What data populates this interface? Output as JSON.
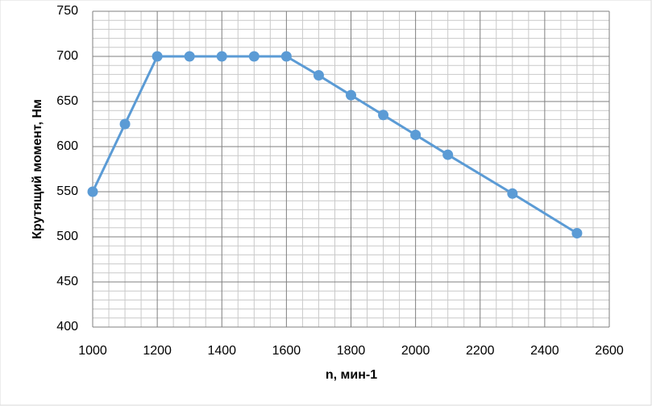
{
  "chart_data": {
    "type": "line",
    "x_label": "n, мин-1",
    "y_label": "Крутящий момент, Нм",
    "x": [
      1000,
      1100,
      1200,
      1300,
      1400,
      1500,
      1600,
      1700,
      1800,
      1900,
      2000,
      2100,
      2300,
      2500
    ],
    "series": [
      {
        "name": "Крутящий момент",
        "color": "#5b9bd5",
        "values": [
          550,
          625,
          700,
          700,
          700,
          700,
          700,
          679,
          657,
          635,
          613,
          591,
          548,
          504
        ]
      }
    ],
    "xlim": [
      1000,
      2600
    ],
    "xticks": [
      1000,
      1200,
      1400,
      1600,
      1800,
      2000,
      2200,
      2400,
      2600
    ],
    "ylim": [
      400,
      750
    ],
    "yticks": [
      400,
      450,
      500,
      550,
      600,
      650,
      700,
      750
    ],
    "grid": true,
    "minor_grid": true,
    "markers": true
  }
}
